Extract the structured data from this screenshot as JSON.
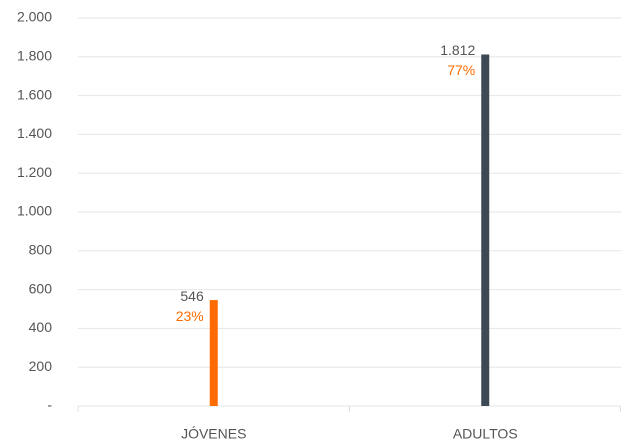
{
  "chart_data": {
    "type": "bar",
    "categories": [
      "JÓVENES",
      "ADULTOS"
    ],
    "values": [
      546,
      1812
    ],
    "value_labels": [
      "546",
      "1.812"
    ],
    "shares": [
      23,
      77
    ],
    "share_labels": [
      "23%",
      "77%"
    ],
    "colors": [
      "#ff6b00",
      "#3d4a56"
    ],
    "share_color": "#ff6b00",
    "ylim": [
      0,
      2000
    ],
    "yticks": [
      {
        "value": 0,
        "label": "-"
      },
      200,
      400,
      600,
      800,
      {
        "value": 1000,
        "label": "1.000"
      },
      {
        "value": 1200,
        "label": "1.200"
      },
      {
        "value": 1400,
        "label": "1.400"
      },
      {
        "value": 1600,
        "label": "1.600"
      },
      {
        "value": 1800,
        "label": "1.800"
      },
      {
        "value": 2000,
        "label": "2.000"
      }
    ],
    "grid": true
  }
}
